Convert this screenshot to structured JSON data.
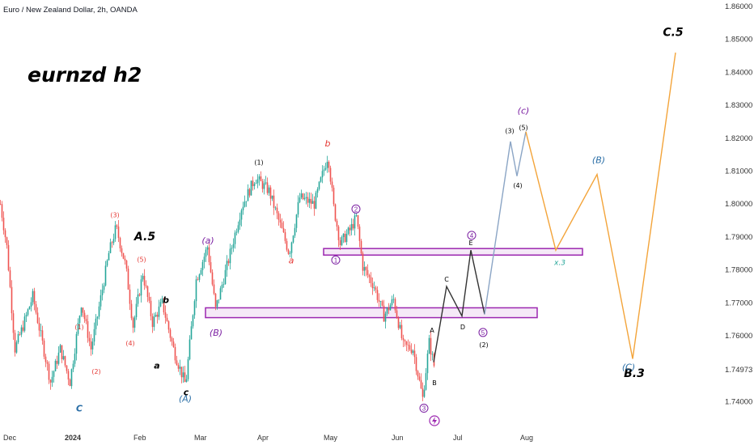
{
  "header": {
    "symbol_title": "Euro / New Zealand Dollar, 2h, OANDA",
    "chart_title": "eurnzd h2"
  },
  "chart_data": {
    "type": "candlestick",
    "symbol": "EURNZD",
    "interval": "2h",
    "source": "OANDA",
    "title": "eurnzd h2",
    "price_ticks": [
      "1.86000",
      "1.85000",
      "1.84000",
      "1.83000",
      "1.82000",
      "1.81000",
      "1.80000",
      "1.79000",
      "1.78000",
      "1.77000",
      "1.76000",
      "1.74973",
      "1.74000"
    ],
    "time_ticks": [
      {
        "label": "Dec",
        "bold": false
      },
      {
        "label": "2024",
        "bold": true
      },
      {
        "label": "Feb",
        "bold": false
      },
      {
        "label": "Mar",
        "bold": false
      },
      {
        "label": "Apr",
        "bold": false
      },
      {
        "label": "May",
        "bold": false
      },
      {
        "label": "Jun",
        "bold": false
      },
      {
        "label": "Jul",
        "bold": false
      },
      {
        "label": "Aug",
        "bold": false
      }
    ],
    "ylim": [
      1.735,
      1.862
    ],
    "price_path": [
      {
        "x": 0,
        "y": 1.8
      },
      {
        "x": 8,
        "y": 1.787
      },
      {
        "x": 18,
        "y": 1.756
      },
      {
        "x": 28,
        "y": 1.763
      },
      {
        "x": 40,
        "y": 1.772
      },
      {
        "x": 50,
        "y": 1.76
      },
      {
        "x": 62,
        "y": 1.746
      },
      {
        "x": 74,
        "y": 1.756
      },
      {
        "x": 86,
        "y": 1.746
      },
      {
        "x": 100,
        "y": 1.77
      },
      {
        "x": 112,
        "y": 1.756
      },
      {
        "x": 120,
        "y": 1.766
      },
      {
        "x": 134,
        "y": 1.785
      },
      {
        "x": 143,
        "y": 1.793
      },
      {
        "x": 155,
        "y": 1.781
      },
      {
        "x": 164,
        "y": 1.763
      },
      {
        "x": 176,
        "y": 1.779
      },
      {
        "x": 188,
        "y": 1.764
      },
      {
        "x": 200,
        "y": 1.77
      },
      {
        "x": 215,
        "y": 1.755
      },
      {
        "x": 229,
        "y": 1.745
      },
      {
        "x": 242,
        "y": 1.777
      },
      {
        "x": 256,
        "y": 1.787
      },
      {
        "x": 266,
        "y": 1.768
      },
      {
        "x": 282,
        "y": 1.783
      },
      {
        "x": 298,
        "y": 1.799
      },
      {
        "x": 315,
        "y": 1.808
      },
      {
        "x": 332,
        "y": 1.804
      },
      {
        "x": 348,
        "y": 1.792
      },
      {
        "x": 357,
        "y": 1.785
      },
      {
        "x": 370,
        "y": 1.802
      },
      {
        "x": 388,
        "y": 1.8
      },
      {
        "x": 405,
        "y": 1.815
      },
      {
        "x": 412,
        "y": 1.799
      },
      {
        "x": 420,
        "y": 1.788
      },
      {
        "x": 432,
        "y": 1.792
      },
      {
        "x": 440,
        "y": 1.796
      },
      {
        "x": 448,
        "y": 1.781
      },
      {
        "x": 462,
        "y": 1.775
      },
      {
        "x": 474,
        "y": 1.766
      },
      {
        "x": 486,
        "y": 1.771
      },
      {
        "x": 498,
        "y": 1.757
      },
      {
        "x": 510,
        "y": 1.756
      },
      {
        "x": 522,
        "y": 1.741
      },
      {
        "x": 530,
        "y": 1.758
      },
      {
        "x": 536,
        "y": 1.751
      }
    ],
    "scenarios": [
      {
        "color": "#333333",
        "points": [
          [
            536,
            1.752
          ],
          [
            552,
            1.775
          ],
          [
            571,
            1.766
          ],
          [
            582,
            1.786
          ],
          [
            599,
            1.7665
          ]
        ]
      },
      {
        "color": "#8ba5c5",
        "points": [
          [
            599,
            1.7665
          ],
          [
            631,
            1.819
          ],
          [
            639,
            1.8085
          ],
          [
            650,
            1.822
          ]
        ]
      },
      {
        "color": "#f3a43a",
        "points": [
          [
            650,
            1.822
          ],
          [
            687,
            1.786
          ],
          [
            738,
            1.809
          ],
          [
            782,
            1.753
          ],
          [
            835,
            1.846
          ]
        ]
      }
    ],
    "zones": [
      {
        "y_top": 1.786,
        "y_bottom": 1.785,
        "x_from": 400,
        "x_to": 720,
        "color": "#9c27b0"
      },
      {
        "y_top": 1.768,
        "y_bottom": 1.766,
        "x_from": 254,
        "x_to": 664,
        "color": "#9c27b0"
      }
    ],
    "annotations": [
      {
        "text": "A.5",
        "x": 179,
        "y": 1.789,
        "color": "#000000",
        "size": 14,
        "weight": "bold",
        "style": "italic"
      },
      {
        "text": "C.5",
        "x": 832,
        "y": 1.851,
        "color": "#000000",
        "size": 14,
        "weight": "bold",
        "style": "italic"
      },
      {
        "text": "B.3",
        "x": 784,
        "y": 1.7475,
        "color": "#000000",
        "size": 14,
        "weight": "bold",
        "style": "italic"
      },
      {
        "text": "(3)",
        "x": 142,
        "y": 1.796,
        "color": "#e53935",
        "size": 8
      },
      {
        "text": "(5)",
        "x": 175,
        "y": 1.7825,
        "color": "#e53935",
        "size": 8
      },
      {
        "text": "(1)",
        "x": 98,
        "y": 1.762,
        "color": "#e53935",
        "size": 8
      },
      {
        "text": "(4)",
        "x": 161,
        "y": 1.757,
        "color": "#e53935",
        "size": 8
      },
      {
        "text": "(2)",
        "x": 119,
        "y": 1.7485,
        "color": "#e53935",
        "size": 8
      },
      {
        "text": "b",
        "x": 205,
        "y": 1.77,
        "color": "#000000",
        "size": 11,
        "weight": "bold",
        "style": "italic"
      },
      {
        "text": "a",
        "x": 194,
        "y": 1.75,
        "color": "#000000",
        "size": 11,
        "weight": "bold",
        "style": "italic"
      },
      {
        "text": "c",
        "x": 230,
        "y": 1.742,
        "color": "#000000",
        "size": 11,
        "weight": "bold",
        "style": "italic"
      },
      {
        "text": "C",
        "x": 98,
        "y": 1.737,
        "color": "#2a6ea6",
        "size": 11,
        "weight": "bold",
        "style": "italic"
      },
      {
        "text": "(A)",
        "x": 229,
        "y": 1.74,
        "color": "#2a6ea6",
        "size": 11,
        "style": "italic"
      },
      {
        "text": "(a)",
        "x": 257,
        "y": 1.788,
        "color": "#7b1fa2",
        "size": 11,
        "style": "italic"
      },
      {
        "text": "(B)",
        "x": 267,
        "y": 1.76,
        "color": "#7b1fa2",
        "size": 11,
        "style": "italic"
      },
      {
        "text": "(1)",
        "x": 320,
        "y": 1.812,
        "color": "#000000",
        "size": 8
      },
      {
        "text": "a",
        "x": 360,
        "y": 1.782,
        "color": "#e53935",
        "size": 11,
        "style": "italic"
      },
      {
        "text": "b",
        "x": 405,
        "y": 1.8175,
        "color": "#e53935",
        "size": 11,
        "style": "italic"
      },
      {
        "text": "(c)",
        "x": 647,
        "y": 1.8275,
        "color": "#7b1fa2",
        "size": 11,
        "style": "italic"
      },
      {
        "text": "(3)",
        "x": 630,
        "y": 1.8215,
        "color": "#000000",
        "size": 8
      },
      {
        "text": "(5)",
        "x": 647,
        "y": 1.8225,
        "color": "#000000",
        "size": 8
      },
      {
        "text": "(4)",
        "x": 640,
        "y": 1.805,
        "color": "#000000",
        "size": 8
      },
      {
        "text": "(B)",
        "x": 740,
        "y": 1.8125,
        "color": "#2a6ea6",
        "size": 11,
        "style": "italic"
      },
      {
        "text": "x.3",
        "x": 692,
        "y": 1.7815,
        "color": "#26a69a",
        "size": 9,
        "style": "italic"
      },
      {
        "text": "(C)",
        "x": 777,
        "y": 1.7495,
        "color": "#2a6ea6",
        "size": 11,
        "style": "italic"
      },
      {
        "text": "C",
        "x": 552,
        "y": 1.7765,
        "color": "#000000",
        "size": 8
      },
      {
        "text": "D",
        "x": 572,
        "y": 1.762,
        "color": "#000000",
        "size": 8
      },
      {
        "text": "E",
        "x": 582,
        "y": 1.7875,
        "color": "#000000",
        "size": 8
      },
      {
        "text": "A",
        "x": 534,
        "y": 1.761,
        "color": "#000000",
        "size": 8
      },
      {
        "text": "B",
        "x": 537,
        "y": 1.745,
        "color": "#000000",
        "size": 8
      },
      {
        "text": "(2)",
        "x": 598,
        "y": 1.7565,
        "color": "#000000",
        "size": 8
      }
    ],
    "circled": [
      {
        "text": "2",
        "x": 440,
        "y": 1.7985,
        "color": "#7b1fa2"
      },
      {
        "text": "1",
        "x": 415,
        "y": 1.783,
        "color": "#7b1fa2"
      },
      {
        "text": "4",
        "x": 583,
        "y": 1.7905,
        "color": "#7b1fa2"
      },
      {
        "text": "5",
        "x": 597,
        "y": 1.761,
        "color": "#7b1fa2"
      },
      {
        "text": "3",
        "x": 524,
        "y": 1.738,
        "color": "#7b1fa2"
      }
    ],
    "grid": false
  }
}
